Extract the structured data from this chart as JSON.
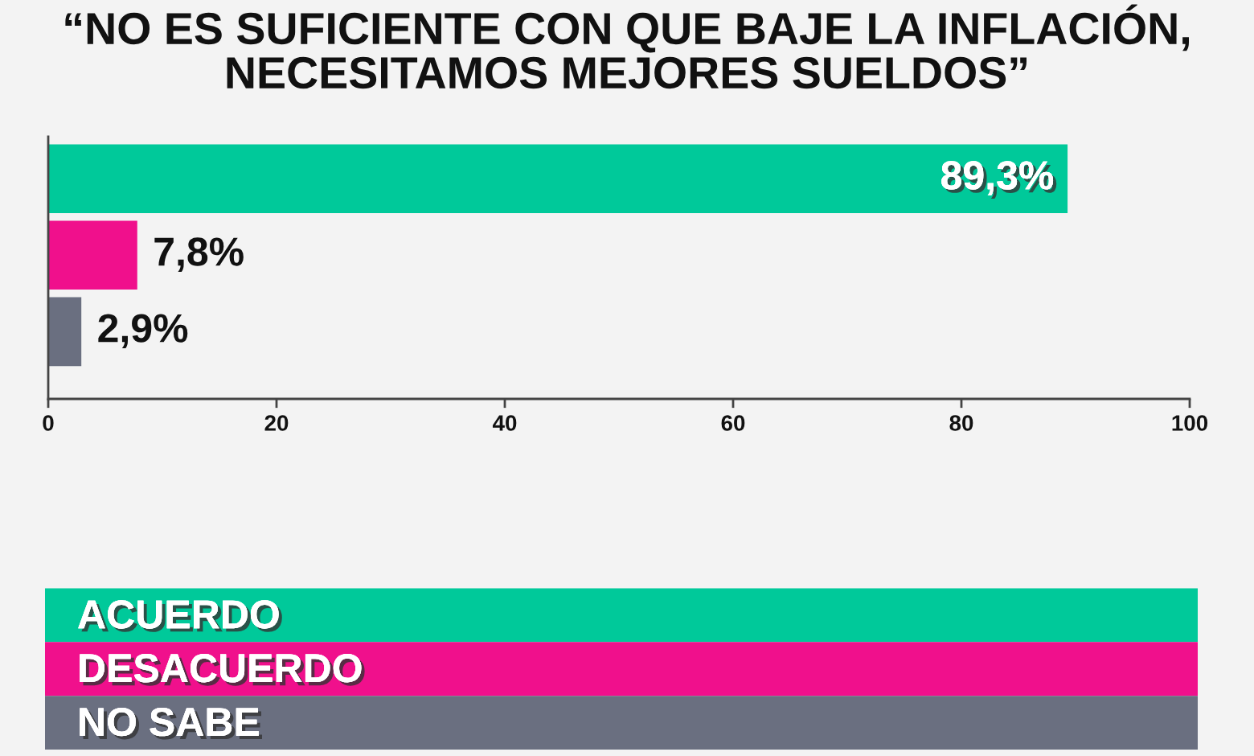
{
  "chart_data": {
    "type": "bar",
    "orientation": "horizontal",
    "stacked": true,
    "title": "“NO ES SUFICIENTE CON QUE BAJE LA INFLACIÓN,\nNECESITAMOS MEJORES SUELDOS”",
    "categories": [
      null,
      null,
      null
    ],
    "series": [
      {
        "name": "ACUERDO",
        "color": "#00c99a",
        "values": [
          89.3,
          null,
          null
        ],
        "value_labels": [
          "89,3%",
          null,
          null
        ]
      },
      {
        "name": "DESACUERDO",
        "color": "#f0108c",
        "values": [
          null,
          7.8,
          null
        ],
        "value_labels": [
          null,
          "7,8%",
          null
        ]
      },
      {
        "name": "NO SABE",
        "color": "#6a6f80",
        "values": [
          null,
          null,
          2.9
        ],
        "value_labels": [
          null,
          null,
          "2,9%"
        ]
      }
    ],
    "xlim": [
      0,
      100
    ],
    "xticks": [
      0,
      20,
      40,
      60,
      80,
      100
    ],
    "tick_labels": "x",
    "legend": "bottom"
  }
}
